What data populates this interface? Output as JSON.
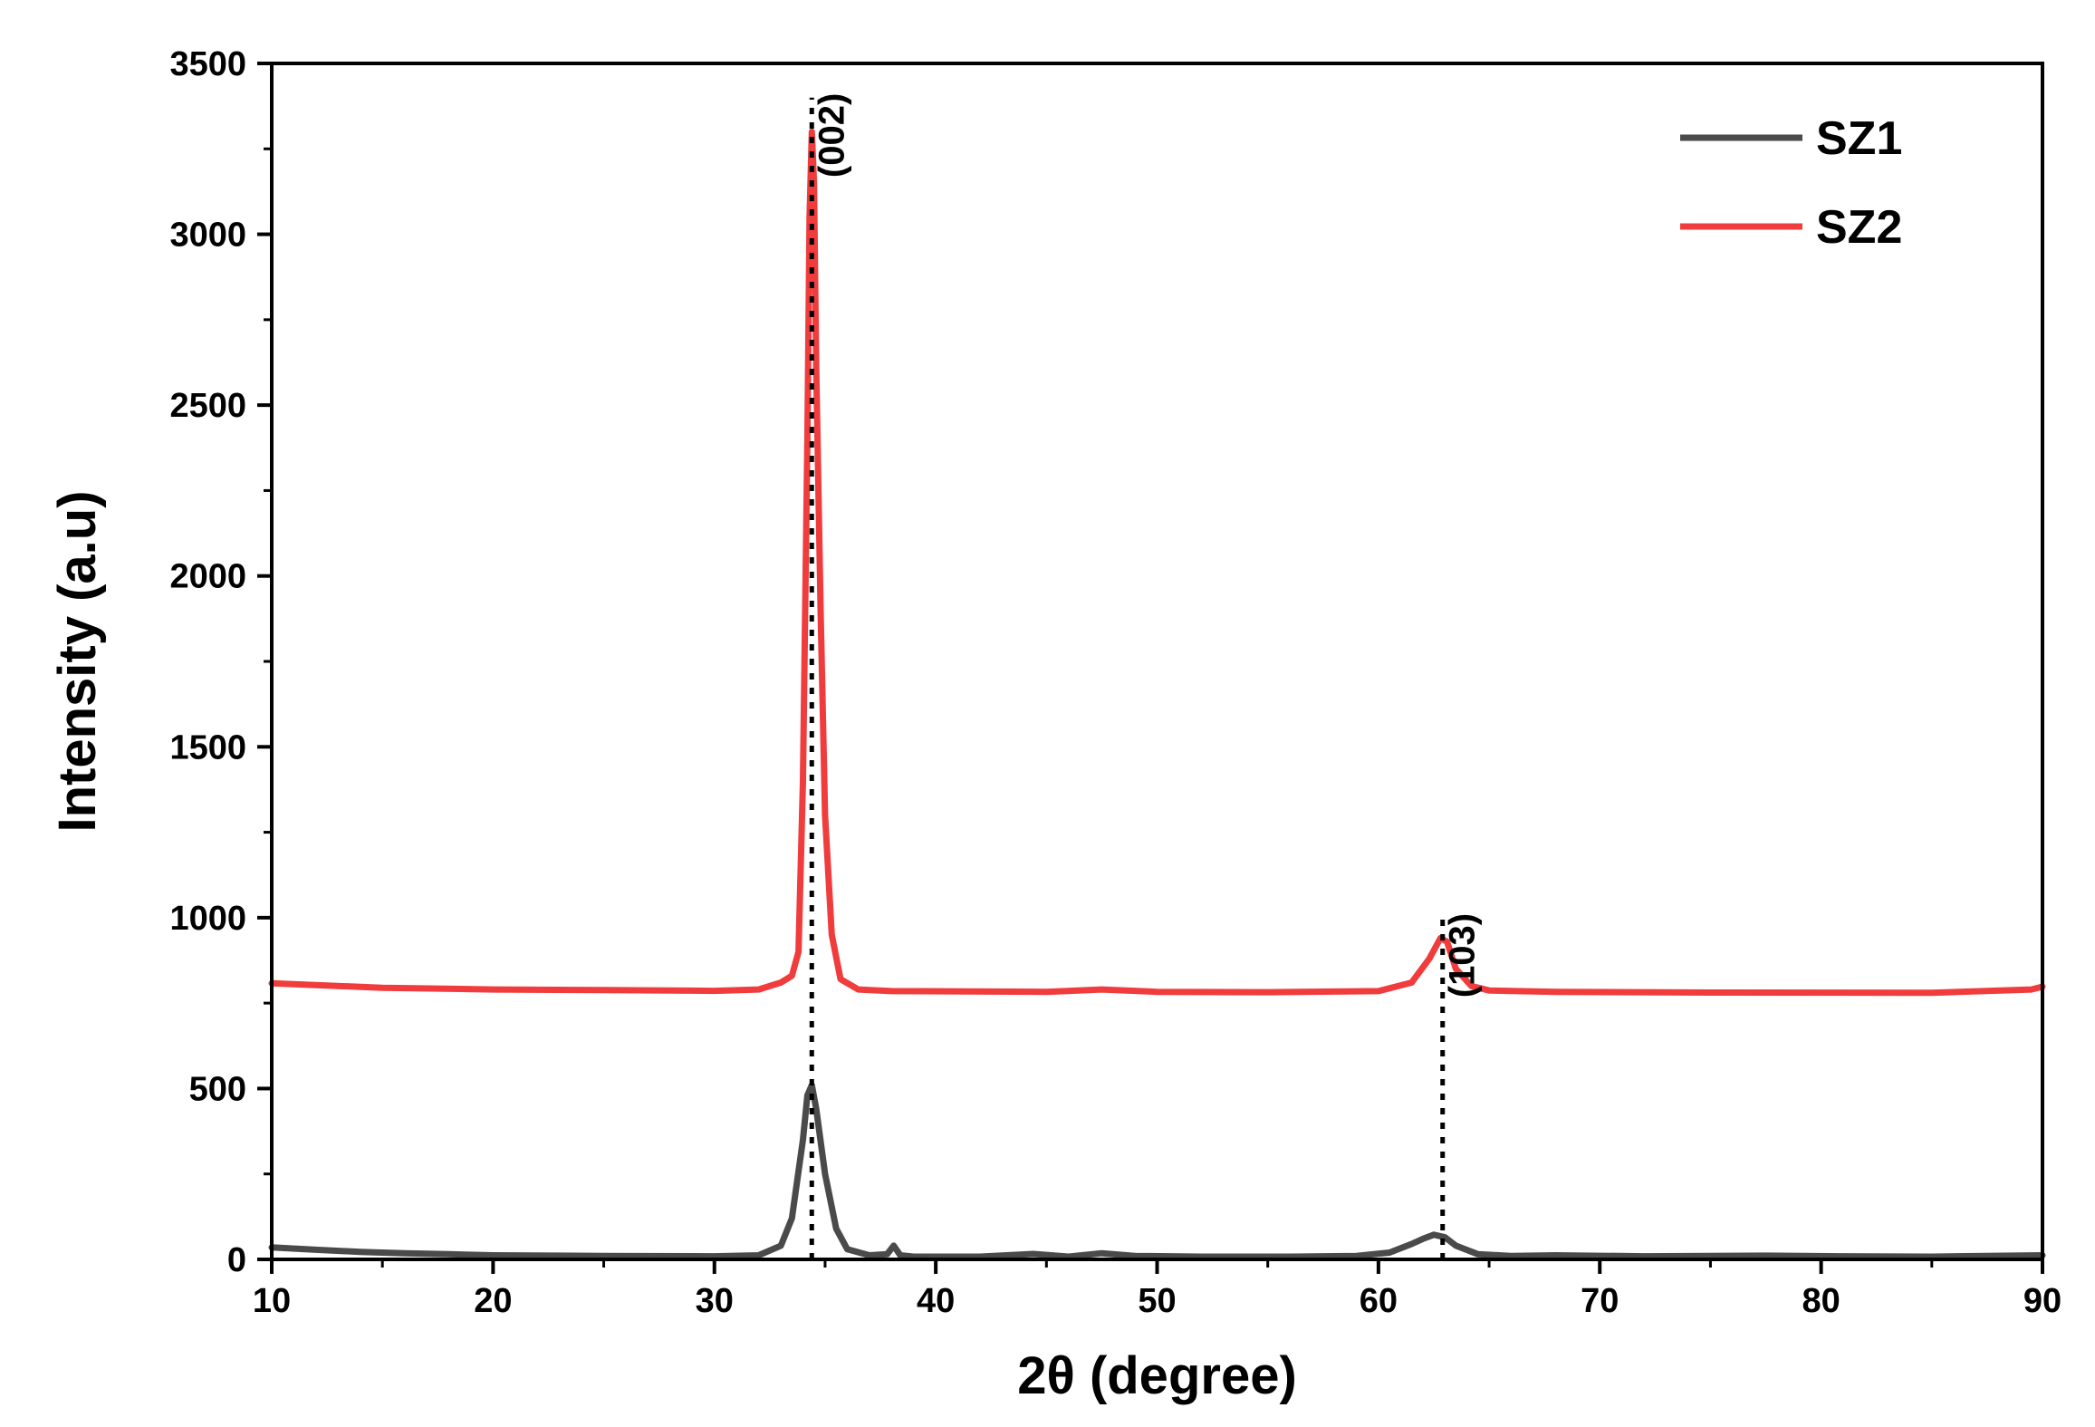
{
  "chart_data": {
    "type": "line",
    "xlabel": "2θ (degree)",
    "ylabel": "Intensity (a.u)",
    "xlim": [
      10,
      90
    ],
    "ylim": [
      0,
      3500
    ],
    "xticks": [
      10,
      20,
      30,
      40,
      50,
      60,
      70,
      80,
      90
    ],
    "yticks": [
      0,
      500,
      1000,
      1500,
      2000,
      2500,
      3000,
      3500
    ],
    "grid": false,
    "legend_position": "top-right",
    "series": [
      {
        "name": "SZ1",
        "color": "#4a4a4a",
        "x": [
          10,
          12,
          14,
          16,
          18,
          20,
          25,
          30,
          32,
          33,
          33.5,
          34,
          34.2,
          34.4,
          34.6,
          35,
          35.5,
          36,
          37,
          37.8,
          38.1,
          38.4,
          39,
          42,
          44.4,
          46,
          47.5,
          49,
          52,
          56,
          59,
          60.5,
          61.5,
          62,
          62.5,
          63,
          63.5,
          64.5,
          66,
          68,
          72,
          77.5,
          81,
          85,
          90
        ],
        "values": [
          35,
          28,
          22,
          18,
          15,
          12,
          10,
          9,
          12,
          40,
          120,
          350,
          480,
          510,
          440,
          250,
          90,
          30,
          12,
          15,
          40,
          12,
          8,
          8,
          16,
          8,
          18,
          10,
          8,
          8,
          10,
          20,
          45,
          60,
          72,
          65,
          40,
          15,
          10,
          12,
          9,
          11,
          9,
          8,
          12
        ]
      },
      {
        "name": "SZ2",
        "color": "#f03c3c",
        "x": [
          10,
          15,
          20,
          25,
          30,
          32,
          33,
          33.5,
          33.8,
          34,
          34.2,
          34.3,
          34.4,
          34.5,
          34.6,
          34.8,
          35,
          35.3,
          35.7,
          36.5,
          38,
          45,
          47.5,
          50,
          55,
          60,
          61.5,
          62.3,
          62.8,
          63.1,
          63.5,
          64.2,
          65,
          68,
          75,
          85,
          89.5,
          90
        ],
        "values": [
          808,
          795,
          790,
          788,
          786,
          790,
          810,
          830,
          900,
          1400,
          2400,
          3050,
          3300,
          3150,
          2600,
          1900,
          1300,
          950,
          820,
          790,
          785,
          783,
          790,
          783,
          782,
          785,
          810,
          880,
          940,
          930,
          850,
          800,
          787,
          783,
          781,
          780,
          790,
          798
        ]
      }
    ],
    "reference_lines": [
      {
        "x": 34.4,
        "label": "(002)",
        "y_from": 0,
        "y_to": 3400
      },
      {
        "x": 62.9,
        "label": "(103)",
        "y_from": 0,
        "y_to": 1000
      }
    ]
  }
}
